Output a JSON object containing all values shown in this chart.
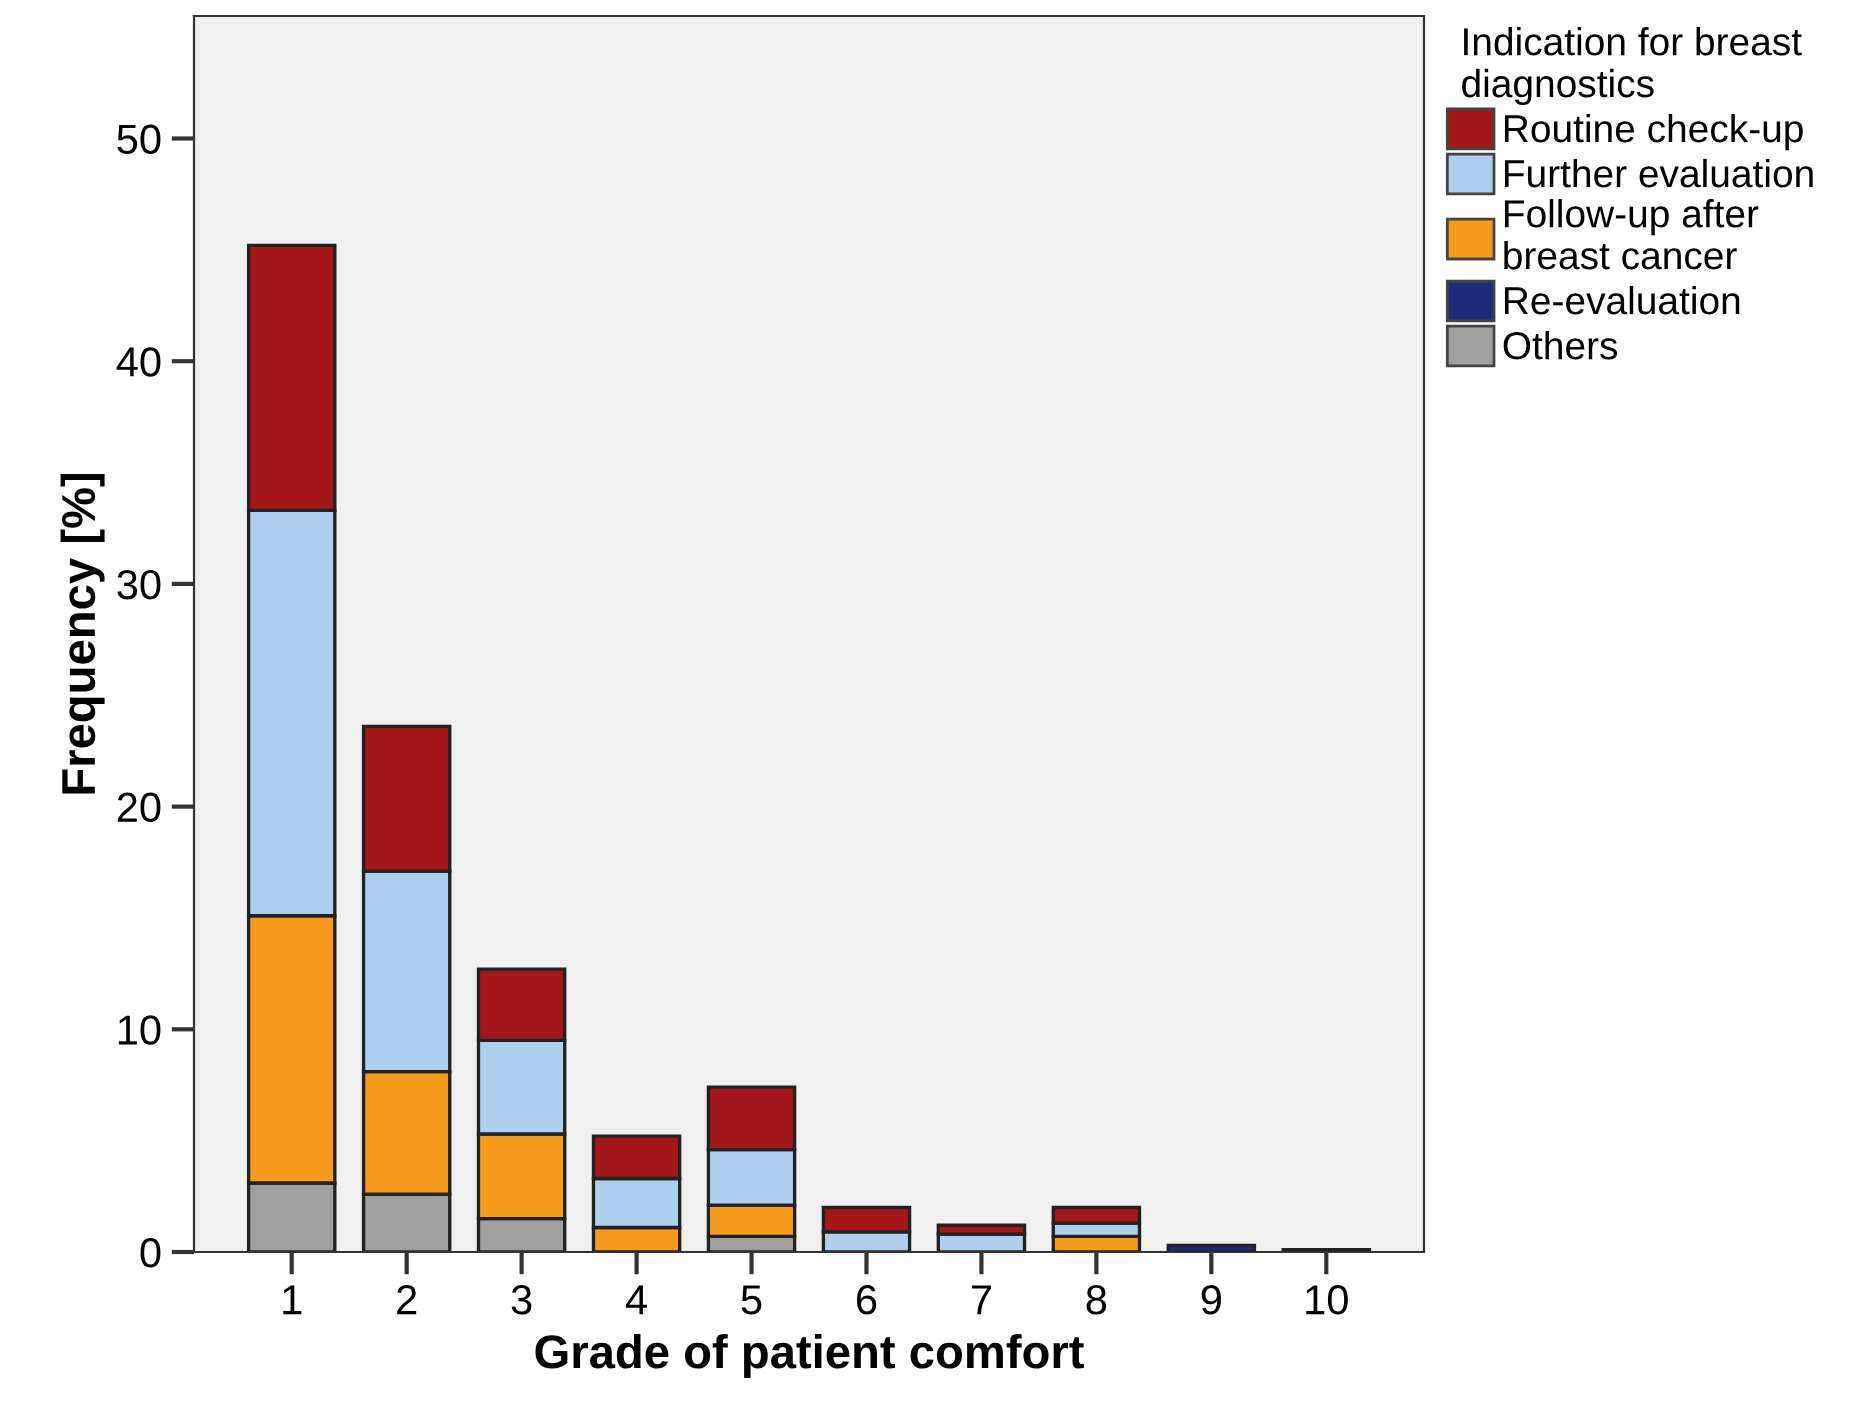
{
  "chart_data": {
    "type": "bar",
    "stacked": true,
    "xlabel": "Grade of patient comfort",
    "ylabel": "Frequency [%]",
    "legend_title": "Indication for breast\ndiagnostics",
    "categories": [
      "1",
      "2",
      "3",
      "4",
      "5",
      "6",
      "7",
      "8",
      "9",
      "10"
    ],
    "series": [
      {
        "name": "Others",
        "color": "#a0a0a0",
        "values": [
          3.1,
          2.6,
          1.5,
          0,
          0.7,
          0,
          0,
          0,
          0,
          0
        ]
      },
      {
        "name": "Re-evaluation",
        "color": "#1f2a7a",
        "values": [
          0,
          0,
          0,
          0,
          0,
          0,
          0,
          0,
          0.3,
          0.1
        ]
      },
      {
        "name": "Follow-up after\nbreast cancer",
        "color": "#f79b1e",
        "values": [
          12.0,
          5.5,
          3.8,
          1.1,
          1.4,
          null,
          null,
          0.7,
          0,
          0
        ]
      },
      {
        "name": "Further evaluation",
        "color": "#aed0ee",
        "values": [
          18.2,
          9.0,
          4.2,
          2.2,
          2.5,
          0.9,
          0.8,
          0.6,
          0,
          0
        ]
      },
      {
        "name": "Routine check-up",
        "color": "#a3161a",
        "values": [
          11.9,
          6.5,
          3.2,
          1.9,
          2.8,
          1.1,
          0.4,
          0.7,
          0,
          0
        ]
      }
    ],
    "ylim": [
      0,
      55.5
    ],
    "yticks": [
      0,
      10,
      20,
      30,
      40,
      50
    ],
    "grid": false,
    "legend": "top right"
  }
}
